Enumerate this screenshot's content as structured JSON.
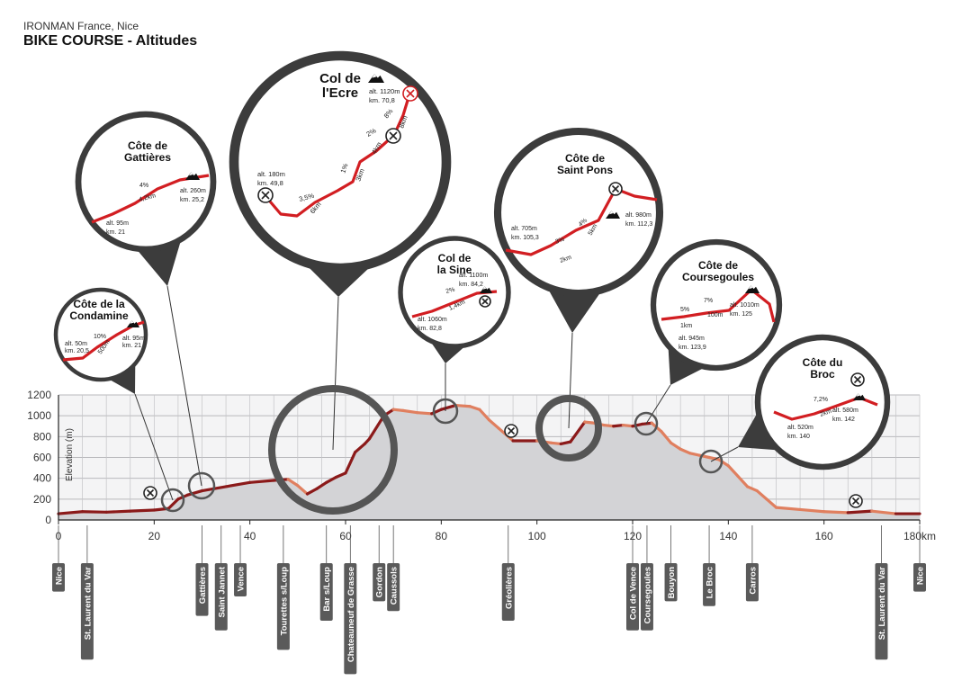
{
  "header": {
    "subtitle": "IRONMAN France, Nice",
    "title": "BIKE COURSE - Altitudes"
  },
  "colors": {
    "profile_dark": "#8b1a1a",
    "profile_light": "#e07f5f",
    "area_fill": "#d3d3d6",
    "bubble_ring": "#4a4a4a",
    "bubble_line": "#d21e22"
  },
  "chart_data": {
    "type": "area",
    "ylabel": "Elevation (m)",
    "xlabel": "",
    "xlim": [
      0,
      180
    ],
    "ylim": [
      0,
      1200
    ],
    "y_ticks": [
      "0",
      "200",
      "400",
      "600",
      "800",
      "1000",
      "1200"
    ],
    "x_ticks": [
      "0",
      "20",
      "40",
      "60",
      "80",
      "100",
      "120",
      "140",
      "160",
      "180km"
    ],
    "grid": true,
    "series": [
      {
        "x": [
          0,
          5,
          10,
          15,
          20,
          23,
          25,
          27,
          30,
          35,
          40,
          45,
          48,
          50,
          52,
          54,
          56,
          58,
          60,
          62,
          64,
          65,
          68,
          70,
          72,
          75,
          78,
          80,
          83,
          86,
          88,
          90,
          92,
          95,
          100,
          103,
          105,
          107,
          110,
          112,
          114,
          116,
          118,
          120,
          122,
          124,
          126,
          128,
          130,
          132,
          134,
          136,
          138,
          140,
          142,
          144,
          146,
          148,
          150,
          155,
          160,
          165,
          170,
          175,
          180
        ],
        "y": [
          60,
          80,
          75,
          85,
          95,
          110,
          200,
          240,
          280,
          320,
          360,
          380,
          390,
          330,
          250,
          300,
          360,
          410,
          450,
          650,
          730,
          780,
          1000,
          1060,
          1050,
          1030,
          1020,
          1060,
          1100,
          1090,
          1060,
          960,
          880,
          760,
          760,
          740,
          730,
          750,
          940,
          930,
          910,
          900,
          910,
          900,
          920,
          930,
          850,
          740,
          680,
          640,
          620,
          600,
          580,
          520,
          420,
          320,
          280,
          200,
          120,
          100,
          80,
          70,
          85,
          60,
          60
        ]
      }
    ]
  },
  "places": [
    {
      "name": "Nice",
      "km": 0
    },
    {
      "name": "St. Laurent du Var",
      "km": 6
    },
    {
      "name": "Gattières",
      "km": 30
    },
    {
      "name": "Saint Jannet",
      "km": 34
    },
    {
      "name": "Vence",
      "km": 38
    },
    {
      "name": "Tourettes s/Loup",
      "km": 47
    },
    {
      "name": "Bar s/Loup",
      "km": 56
    },
    {
      "name": "Chateauneuf de Grasse",
      "km": 61
    },
    {
      "name": "Gordon",
      "km": 67
    },
    {
      "name": "Caussols",
      "km": 70
    },
    {
      "name": "Gréolières",
      "km": 94
    },
    {
      "name": "Col de Vence",
      "km": 120
    },
    {
      "name": "Coursegoules",
      "km": 123
    },
    {
      "name": "Bouyon",
      "km": 128
    },
    {
      "name": "Le Broc",
      "km": 136
    },
    {
      "name": "Carros",
      "km": 145
    },
    {
      "name": "St. Laurent du Var",
      "km": 172
    },
    {
      "name": "Nice",
      "km": 180
    }
  ],
  "climbs": [
    {
      "title": [
        "Côte de la",
        "Condamine"
      ],
      "labels": [
        "alt. 50m",
        "km. 20,5",
        "alt. 95m",
        "km. 21",
        "10%",
        "500m"
      ]
    },
    {
      "title": [
        "Côte de",
        "Gattières"
      ],
      "labels": [
        "alt. 95m",
        "km. 21",
        "alt. 260m",
        "km. 25,2",
        "4%",
        "4,2km"
      ]
    },
    {
      "title": [
        "Col de",
        "l'Ecre"
      ],
      "labels": [
        "alt. 180m",
        "km. 49,8",
        "alt. 1120m",
        "km. 70,8",
        "3,5%",
        "6km",
        "1%",
        "3km",
        "2%",
        "4km",
        "8%",
        "8km"
      ]
    },
    {
      "title": [
        "Col de",
        "la Sine"
      ],
      "labels": [
        "alt. 1060m",
        "km. 82,8",
        "alt. 1100m",
        "km. 84,2",
        "2%",
        "1,4km"
      ]
    },
    {
      "title": [
        "Côte de",
        "Saint Pons"
      ],
      "labels": [
        "alt. 705m",
        "km. 105,3",
        "alt. 980m",
        "km. 112,3",
        "3%",
        "2km",
        "4%",
        "5km"
      ]
    },
    {
      "title": [
        "Côte de",
        "Coursegoules"
      ],
      "labels": [
        "alt. 945m",
        "km. 123,9",
        "alt. 1010m",
        "km. 125",
        "5%",
        "1km",
        "7%",
        "100m"
      ]
    },
    {
      "title": [
        "Côte du",
        "Broc"
      ],
      "labels": [
        "alt. 520m",
        "km. 140",
        "alt. 580m",
        "km. 142",
        "7,2%",
        "2km"
      ]
    }
  ]
}
